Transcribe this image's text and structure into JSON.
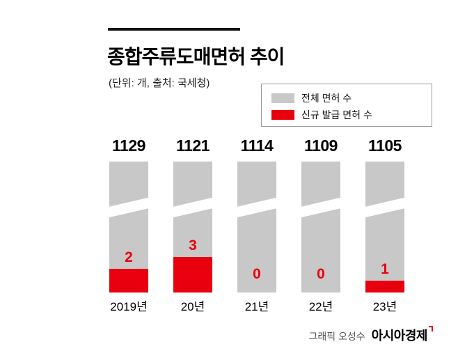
{
  "header": {
    "title": "종합주류도매면허 추이",
    "subtitle": "(단위: 개, 출처: 국세청)"
  },
  "legend": {
    "total_label": "전체 면허 수",
    "new_label": "신규 발급 면허 수"
  },
  "footer": {
    "credit": "그래픽 오성수",
    "brand": "아시아경제"
  },
  "chart_data": {
    "type": "bar",
    "title": "종합주류도매면허 추이",
    "subtitle_unit_source": "(단위: 개, 출처: 국세청)",
    "categories": [
      "2019년",
      "20년",
      "21년",
      "22년",
      "23년"
    ],
    "series": [
      {
        "name": "전체 면허 수",
        "color": "#c8c8c8",
        "values": [
          1129,
          1121,
          1114,
          1109,
          1105
        ]
      },
      {
        "name": "신규 발급 면허 수",
        "color": "#e8000f",
        "values": [
          2,
          3,
          0,
          0,
          1
        ]
      }
    ],
    "axis_break": true,
    "grid": false,
    "legend_position": "top-right",
    "value_labels": "above-bars"
  }
}
